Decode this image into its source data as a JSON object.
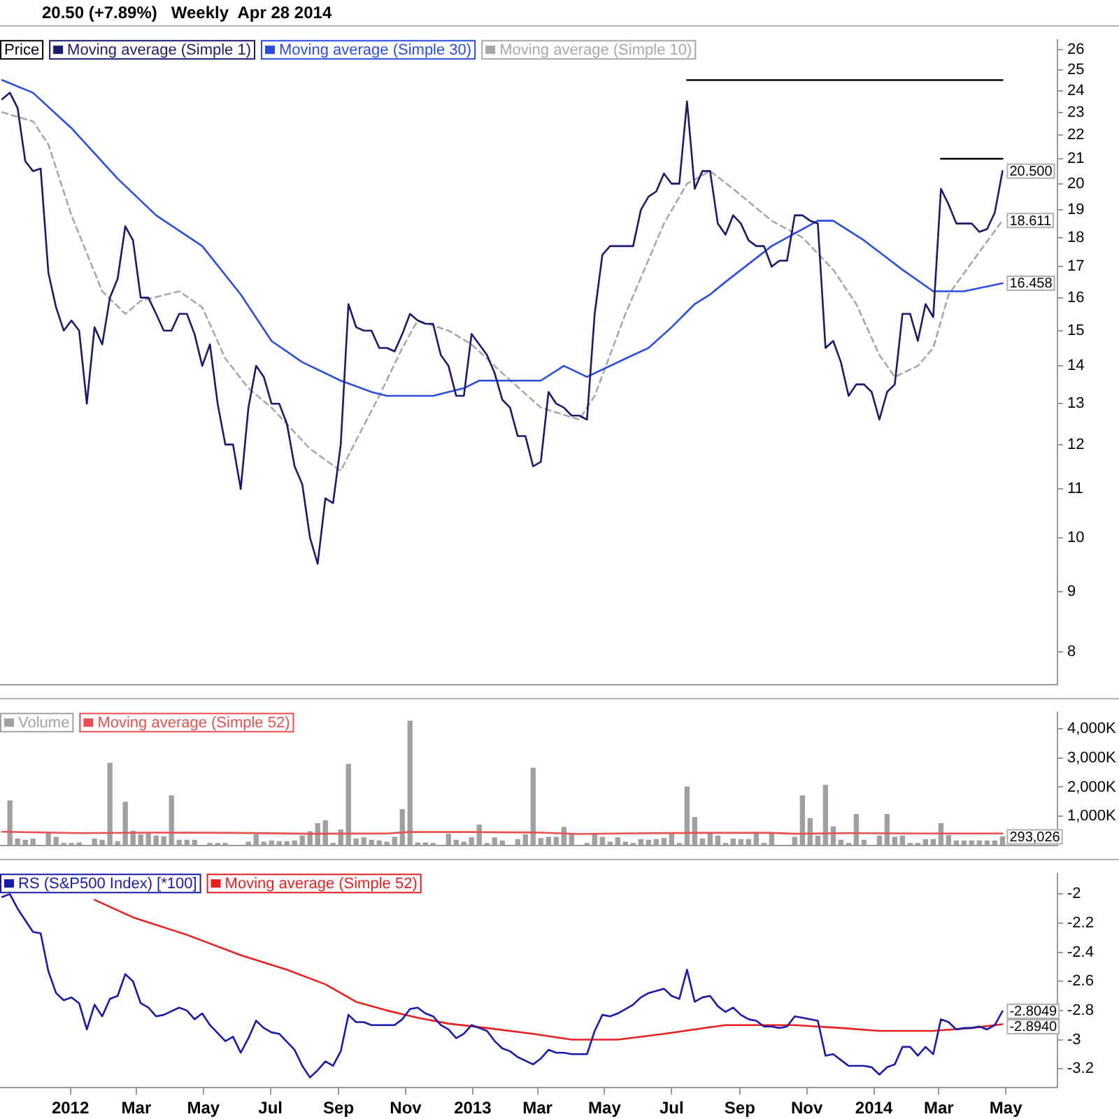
{
  "chart_data": [
    {
      "type": "line",
      "title": "20.50 (+7.89%)   Weekly  Apr 28 2014",
      "legend_title": "Price",
      "legend": "top left",
      "marker": "none",
      "log": true,
      "tick_labels": "y",
      "x": [
        "2011-10-31",
        "2011-11-07",
        "2011-11-14",
        "2011-11-21",
        "2011-11-28",
        "2011-12-05",
        "2011-12-12",
        "2011-12-19",
        "2011-12-26",
        "2012-01-02",
        "2012-01-09",
        "2012-01-16",
        "2012-01-23",
        "2012-01-30",
        "2012-02-06",
        "2012-02-13",
        "2012-02-20",
        "2012-02-27",
        "2012-03-05",
        "2012-03-12",
        "2012-03-19",
        "2012-03-26",
        "2012-04-02",
        "2012-04-09",
        "2012-04-16",
        "2012-04-23",
        "2012-04-30",
        "2012-05-07",
        "2012-05-14",
        "2012-05-21",
        "2012-05-28",
        "2012-06-04",
        "2012-06-11",
        "2012-06-18",
        "2012-06-25",
        "2012-07-02",
        "2012-07-09",
        "2012-07-16",
        "2012-07-23",
        "2012-07-30",
        "2012-08-06",
        "2012-08-13",
        "2012-08-20",
        "2012-08-27",
        "2012-09-03",
        "2012-09-10",
        "2012-09-17",
        "2012-09-24",
        "2012-10-01",
        "2012-10-08",
        "2012-10-15",
        "2012-10-22",
        "2012-10-29",
        "2012-11-05",
        "2012-11-12",
        "2012-11-19",
        "2012-11-26",
        "2012-12-03",
        "2012-12-10",
        "2012-12-17",
        "2012-12-24",
        "2012-12-31",
        "2013-01-07",
        "2013-01-14",
        "2013-01-21",
        "2013-01-28",
        "2013-02-04",
        "2013-02-11",
        "2013-02-18",
        "2013-02-25",
        "2013-03-04",
        "2013-03-11",
        "2013-03-18",
        "2013-03-25",
        "2013-04-01",
        "2013-04-08",
        "2013-04-15",
        "2013-04-22",
        "2013-04-29",
        "2013-05-06",
        "2013-05-13",
        "2013-05-20",
        "2013-05-27",
        "2013-06-03",
        "2013-06-10",
        "2013-06-17",
        "2013-06-24",
        "2013-07-01",
        "2013-07-08",
        "2013-07-15",
        "2013-07-22",
        "2013-07-29",
        "2013-08-05",
        "2013-08-12",
        "2013-08-19",
        "2013-08-26",
        "2013-09-02",
        "2013-09-09",
        "2013-09-16",
        "2013-09-23",
        "2013-09-30",
        "2013-10-07",
        "2013-10-14",
        "2013-10-21",
        "2013-10-28",
        "2013-11-04",
        "2013-11-11",
        "2013-11-18",
        "2013-11-25",
        "2013-12-02",
        "2013-12-09",
        "2013-12-16",
        "2013-12-23",
        "2013-12-30",
        "2014-01-06",
        "2014-01-13",
        "2014-01-20",
        "2014-01-27",
        "2014-02-03",
        "2014-02-10",
        "2014-02-17",
        "2014-02-24",
        "2014-03-03",
        "2014-03-10",
        "2014-03-17",
        "2014-03-24",
        "2014-03-31",
        "2014-04-07",
        "2014-04-14",
        "2014-04-21",
        "2014-04-28"
      ],
      "xlim": [
        "2011-10-29",
        "2014-06-17"
      ],
      "ylim": [
        7.5,
        26.5
      ],
      "yticks": [
        8,
        9,
        10,
        11,
        12,
        13,
        14,
        15,
        16,
        17,
        18,
        19,
        20,
        21,
        22,
        23,
        24,
        25,
        26
      ],
      "series": [
        {
          "color": "#000000",
          "x": [
            "2013-07-15",
            "2014-04-28"
          ],
          "values": [
            24.5,
            24.5
          ]
        },
        {
          "color": "#000000",
          "x": [
            "2014-03-03",
            "2014-04-28"
          ],
          "values": [
            21,
            21
          ]
        },
        {
          "name": "Moving average (Simple 1)",
          "color": "#1a1a6e",
          "values": [
            23.6,
            23.9,
            23.2,
            20.9,
            20.5,
            20.6,
            16.8,
            15.7,
            15.0,
            15.3,
            15.0,
            13.0,
            15.1,
            14.6,
            16.0,
            16.6,
            18.4,
            17.9,
            16.0,
            16.0,
            15.5,
            15.0,
            15.0,
            15.5,
            15.5,
            14.9,
            14.0,
            14.6,
            13.0,
            12.0,
            12.0,
            11.0,
            12.9,
            14.0,
            13.7,
            13.0,
            13.0,
            12.5,
            11.5,
            11.1,
            10.0,
            9.5,
            10.8,
            10.7,
            12.0,
            15.8,
            15.1,
            15.0,
            15.0,
            14.5,
            14.5,
            14.4,
            14.9,
            15.5,
            15.3,
            15.2,
            15.2,
            14.3,
            14.0,
            13.2,
            13.2,
            14.9,
            14.6,
            14.3,
            13.8,
            13.1,
            12.9,
            12.2,
            12.2,
            11.5,
            11.6,
            13.3,
            13.0,
            12.9,
            12.7,
            12.7,
            12.6,
            15.5,
            17.4,
            17.7,
            17.7,
            17.7,
            17.7,
            19.0,
            19.5,
            19.7,
            20.4,
            20.0,
            20.0,
            23.5,
            19.8,
            20.5,
            20.5,
            18.5,
            18.1,
            18.8,
            18.5,
            17.9,
            17.7,
            17.7,
            17.0,
            17.2,
            17.2,
            18.8,
            18.8,
            18.6,
            18.5,
            14.5,
            14.7,
            14.1,
            13.2,
            13.5,
            13.5,
            13.3,
            12.6,
            13.3,
            13.5,
            15.5,
            15.5,
            14.7,
            15.8,
            15.4,
            19.8,
            19.2,
            18.5,
            18.5,
            18.5,
            18.2,
            18.3,
            18.9,
            20.5
          ]
        },
        {
          "name": "Moving average (Simple 30)",
          "color": "#2a4de0",
          "x": [
            "2011-10-31",
            "2011-11-28",
            "2012-01-02",
            "2012-02-13",
            "2012-03-19",
            "2012-04-30",
            "2012-06-04",
            "2012-07-02",
            "2012-07-30",
            "2012-09-03",
            "2012-10-01",
            "2012-10-15",
            "2012-11-26",
            "2012-12-24",
            "2013-01-07",
            "2013-03-04",
            "2013-03-25",
            "2013-04-15",
            "2013-05-20",
            "2013-06-10",
            "2013-07-01",
            "2013-07-22",
            "2013-08-05",
            "2013-08-19",
            "2013-09-30",
            "2013-11-11",
            "2013-11-25",
            "2013-12-23",
            "2014-01-27",
            "2014-02-24",
            "2014-03-24",
            "2014-04-28"
          ],
          "values": [
            24.5,
            23.9,
            22.3,
            20.2,
            18.8,
            17.7,
            16.1,
            14.7,
            14.1,
            13.6,
            13.3,
            13.2,
            13.2,
            13.4,
            13.6,
            13.6,
            14.0,
            13.7,
            14.2,
            14.5,
            15.1,
            15.8,
            16.1,
            16.5,
            17.7,
            18.6,
            18.6,
            17.9,
            16.9,
            16.2,
            16.2,
            16.458
          ]
        },
        {
          "name": "Moving average (Simple 10)",
          "color": "#a8a8a8",
          "line_style": "dashed",
          "x": [
            "2011-10-31",
            "2011-11-28",
            "2011-12-12",
            "2012-01-02",
            "2012-01-30",
            "2012-02-20",
            "2012-03-05",
            "2012-04-09",
            "2012-04-30",
            "2012-05-21",
            "2012-06-11",
            "2012-07-02",
            "2012-08-06",
            "2012-09-03",
            "2012-09-17",
            "2012-10-08",
            "2012-10-29",
            "2012-11-12",
            "2012-12-10",
            "2012-12-31",
            "2013-01-28",
            "2013-03-04",
            "2013-04-08",
            "2013-04-22",
            "2013-05-20",
            "2013-06-24",
            "2013-07-15",
            "2013-08-05",
            "2013-08-26",
            "2013-09-30",
            "2013-10-28",
            "2013-11-25",
            "2013-12-16",
            "2014-01-06",
            "2014-01-20",
            "2014-02-10",
            "2014-02-24",
            "2014-03-10",
            "2014-04-07",
            "2014-04-28"
          ],
          "values": [
            23.0,
            22.6,
            21.6,
            18.8,
            16.2,
            15.5,
            15.9,
            16.2,
            15.7,
            14.2,
            13.4,
            12.9,
            11.9,
            11.4,
            12.1,
            13.2,
            14.5,
            15.3,
            15.0,
            14.6,
            13.8,
            12.9,
            12.6,
            13.2,
            15.5,
            18.5,
            20.0,
            20.5,
            19.8,
            18.6,
            18.0,
            16.9,
            15.8,
            14.3,
            13.7,
            14.0,
            14.5,
            16.1,
            17.5,
            18.611
          ]
        }
      ],
      "annotations": [
        {
          "text": "20.500",
          "x": "2014-04-28",
          "y": 20.5
        },
        {
          "text": "18.611",
          "x": "2014-04-28",
          "y": 18.611
        },
        {
          "text": "16.458",
          "x": "2014-04-28",
          "y": 16.458
        }
      ]
    },
    {
      "type": "bar",
      "legend": "top left",
      "marker": "none",
      "tick_labels": "y",
      "x": [
        "2011-11-07",
        "2011-11-14",
        "2011-11-21",
        "2011-11-28",
        "2011-12-05",
        "2011-12-12",
        "2011-12-19",
        "2011-12-26",
        "2012-01-02",
        "2012-01-09",
        "2012-01-16",
        "2012-01-23",
        "2012-01-30",
        "2012-02-06",
        "2012-02-13",
        "2012-02-20",
        "2012-02-27",
        "2012-03-05",
        "2012-03-12",
        "2012-03-19",
        "2012-03-26",
        "2012-04-02",
        "2012-04-09",
        "2012-04-16",
        "2012-04-23",
        "2012-04-30",
        "2012-05-07",
        "2012-05-14",
        "2012-05-21",
        "2012-05-28",
        "2012-06-04",
        "2012-06-11",
        "2012-06-18",
        "2012-06-25",
        "2012-07-02",
        "2012-07-09",
        "2012-07-16",
        "2012-07-23",
        "2012-07-30",
        "2012-08-06",
        "2012-08-13",
        "2012-08-20",
        "2012-08-27",
        "2012-09-03",
        "2012-09-10",
        "2012-09-17",
        "2012-09-24",
        "2012-10-01",
        "2012-10-08",
        "2012-10-15",
        "2012-10-22",
        "2012-10-29",
        "2012-11-05",
        "2012-11-12",
        "2012-11-19",
        "2012-11-26",
        "2012-12-03",
        "2012-12-10",
        "2012-12-17",
        "2012-12-24",
        "2012-12-31",
        "2013-01-07",
        "2013-01-14",
        "2013-01-21",
        "2013-01-28",
        "2013-02-04",
        "2013-02-11",
        "2013-02-18",
        "2013-02-25",
        "2013-03-04",
        "2013-03-11",
        "2013-03-18",
        "2013-03-25",
        "2013-04-01",
        "2013-04-08",
        "2013-04-15",
        "2013-04-22",
        "2013-04-29",
        "2013-05-06",
        "2013-05-13",
        "2013-05-20",
        "2013-05-27",
        "2013-06-03",
        "2013-06-10",
        "2013-06-17",
        "2013-06-24",
        "2013-07-01",
        "2013-07-08",
        "2013-07-15",
        "2013-07-22",
        "2013-07-29",
        "2013-08-05",
        "2013-08-12",
        "2013-08-19",
        "2013-08-26",
        "2013-09-02",
        "2013-09-09",
        "2013-09-16",
        "2013-09-23",
        "2013-09-30",
        "2013-10-07",
        "2013-10-14",
        "2013-10-21",
        "2013-10-28",
        "2013-11-04",
        "2013-11-11",
        "2013-11-18",
        "2013-11-25",
        "2013-12-02",
        "2013-12-09",
        "2013-12-16",
        "2013-12-23",
        "2013-12-30",
        "2014-01-06",
        "2014-01-13",
        "2014-01-20",
        "2014-01-27",
        "2014-02-03",
        "2014-02-10",
        "2014-02-17",
        "2014-02-24",
        "2014-03-03",
        "2014-03-10",
        "2014-03-17",
        "2014-03-24",
        "2014-03-31",
        "2014-04-07",
        "2014-04-14",
        "2014-04-21",
        "2014-04-28"
      ],
      "xlim": [
        "2011-10-29",
        "2014-06-17"
      ],
      "ylim": [
        0,
        4550
      ],
      "yticks": [
        {
          "value": 1000,
          "label": "1,000K"
        },
        {
          "value": 2000,
          "label": "2,000K"
        },
        {
          "value": 3000,
          "label": "3,000K"
        },
        {
          "value": 4000,
          "label": "4,000K"
        }
      ],
      "series": [
        {
          "name": "Volume",
          "color": "#a0a0a0",
          "values": [
            1530,
            220,
            175,
            220,
            null,
            430,
            280,
            70,
            70,
            90,
            null,
            220,
            175,
            2820,
            130,
            1480,
            490,
            365,
            410,
            320,
            300,
            1700,
            175,
            175,
            175,
            null,
            70,
            70,
            70,
            null,
            null,
            110,
            365,
            110,
            155,
            130,
            130,
            155,
            320,
            470,
            750,
            850,
            70,
            530,
            2780,
            220,
            260,
            175,
            155,
            110,
            280,
            1230,
            4260,
            90,
            90,
            70,
            null,
            390,
            175,
            110,
            260,
            700,
            70,
            260,
            155,
            null,
            200,
            365,
            2650,
            240,
            280,
            280,
            620,
            390,
            null,
            70,
            365,
            280,
            110,
            260,
            110,
            70,
            200,
            175,
            200,
            240,
            390,
            70,
            2010,
            960,
            220,
            430,
            320,
            70,
            220,
            200,
            200,
            450,
            70,
            430,
            null,
            null,
            280,
            1700,
            920,
            320,
            2060,
            640,
            175,
            70,
            1060,
            175,
            null,
            320,
            1060,
            280,
            320,
            70,
            70,
            200,
            200,
            750,
            345,
            155,
            155,
            155,
            155,
            155,
            155,
            293.026
          ]
        },
        {
          "name": "Moving average (Simple 52)",
          "type": "line",
          "color": "#e85050",
          "x": [
            "2011-10-31",
            "2012-01-09",
            "2012-03-19",
            "2012-05-28",
            "2012-08-06",
            "2012-10-15",
            "2012-11-05",
            "2012-12-24",
            "2013-03-04",
            "2013-04-08",
            "2013-05-13",
            "2013-07-22",
            "2013-09-30",
            "2013-10-21",
            "2013-12-09",
            "2014-02-17",
            "2014-04-28"
          ],
          "values": [
            470,
            420,
            440,
            430,
            400,
            410,
            460,
            460,
            440,
            390,
            410,
            430,
            430,
            400,
            420,
            410,
            410
          ]
        }
      ],
      "annotations": [
        {
          "text": "293,026",
          "x": "2014-04-28",
          "y": 293.026
        }
      ]
    },
    {
      "type": "line",
      "legend": "top left",
      "marker": "none",
      "xlim": [
        "2011-10-29",
        "2014-06-17"
      ],
      "xticks": [
        {
          "value": "2012-01-01",
          "label": "2012"
        },
        {
          "value": "2012-03-01",
          "label": "Mar"
        },
        {
          "value": "2012-05-01",
          "label": "May"
        },
        {
          "value": "2012-07-01",
          "label": "Jul"
        },
        {
          "value": "2012-09-01",
          "label": "Sep"
        },
        {
          "value": "2012-11-01",
          "label": "Nov"
        },
        {
          "value": "2013-01-01",
          "label": "2013"
        },
        {
          "value": "2013-03-01",
          "label": "Mar"
        },
        {
          "value": "2013-05-01",
          "label": "May"
        },
        {
          "value": "2013-07-01",
          "label": "Jul"
        },
        {
          "value": "2013-09-01",
          "label": "Sep"
        },
        {
          "value": "2013-11-01",
          "label": "Nov"
        },
        {
          "value": "2014-01-01",
          "label": "2014"
        },
        {
          "value": "2014-03-01",
          "label": "Mar"
        },
        {
          "value": "2014-05-01",
          "label": "May"
        }
      ],
      "ylim": [
        -3.33,
        -1.86
      ],
      "yticks": [
        -3.2,
        -3,
        -2.8,
        -2.6,
        -2.4,
        -2.2,
        -2
      ],
      "series": [
        {
          "name": "RS (S&P500 Index) [*100]",
          "color": "#1a1aa8",
          "x": [
            "2011-10-31",
            "2011-11-07",
            "2011-11-14",
            "2011-11-28",
            "2011-12-05",
            "2011-12-12",
            "2011-12-19",
            "2011-12-26",
            "2012-01-02",
            "2012-01-09",
            "2012-01-16",
            "2012-01-23",
            "2012-01-30",
            "2012-02-06",
            "2012-02-13",
            "2012-02-20",
            "2012-02-27",
            "2012-03-05",
            "2012-03-12",
            "2012-03-19",
            "2012-03-26",
            "2012-04-09",
            "2012-04-16",
            "2012-04-23",
            "2012-04-30",
            "2012-05-07",
            "2012-05-21",
            "2012-05-28",
            "2012-06-04",
            "2012-06-11",
            "2012-06-18",
            "2012-06-25",
            "2012-07-02",
            "2012-07-09",
            "2012-07-23",
            "2012-07-30",
            "2012-08-06",
            "2012-08-13",
            "2012-08-20",
            "2012-08-27",
            "2012-09-03",
            "2012-09-10",
            "2012-09-17",
            "2012-09-24",
            "2012-10-01",
            "2012-10-08",
            "2012-10-22",
            "2012-10-29",
            "2012-11-05",
            "2012-11-12",
            "2012-11-19",
            "2012-11-26",
            "2012-12-03",
            "2012-12-10",
            "2012-12-17",
            "2012-12-24",
            "2012-12-31",
            "2013-01-07",
            "2013-01-14",
            "2013-01-21",
            "2013-01-28",
            "2013-02-04",
            "2013-02-11",
            "2013-02-25",
            "2013-03-04",
            "2013-03-11",
            "2013-03-18",
            "2013-03-25",
            "2013-04-01",
            "2013-04-15",
            "2013-04-22",
            "2013-04-29",
            "2013-05-06",
            "2013-05-13",
            "2013-05-27",
            "2013-06-03",
            "2013-06-10",
            "2013-06-24",
            "2013-07-01",
            "2013-07-08",
            "2013-07-15",
            "2013-07-22",
            "2013-07-29",
            "2013-08-05",
            "2013-08-12",
            "2013-08-19",
            "2013-08-26",
            "2013-09-02",
            "2013-09-09",
            "2013-09-16",
            "2013-09-23",
            "2013-09-30",
            "2013-10-07",
            "2013-10-14",
            "2013-10-21",
            "2013-10-28",
            "2013-11-11",
            "2013-11-18",
            "2013-11-25",
            "2013-12-02",
            "2013-12-09",
            "2013-12-23",
            "2013-12-30",
            "2014-01-06",
            "2014-01-13",
            "2014-01-20",
            "2014-01-27",
            "2014-02-03",
            "2014-02-10",
            "2014-02-17",
            "2014-02-24",
            "2014-03-03",
            "2014-03-10",
            "2014-03-17",
            "2014-03-24",
            "2014-03-31",
            "2014-04-07",
            "2014-04-14",
            "2014-04-21",
            "2014-04-28"
          ],
          "values": [
            -2.02,
            -2.0,
            -2.1,
            -2.26,
            -2.27,
            -2.53,
            -2.68,
            -2.73,
            -2.71,
            -2.75,
            -2.93,
            -2.76,
            -2.84,
            -2.72,
            -2.7,
            -2.55,
            -2.6,
            -2.75,
            -2.78,
            -2.84,
            -2.83,
            -2.78,
            -2.8,
            -2.86,
            -2.82,
            -2.9,
            -3.01,
            -2.98,
            -3.09,
            -2.99,
            -2.87,
            -2.92,
            -2.95,
            -2.96,
            -3.07,
            -3.18,
            -3.26,
            -3.21,
            -3.15,
            -3.18,
            -3.08,
            -2.83,
            -2.88,
            -2.88,
            -2.9,
            -2.9,
            -2.9,
            -2.86,
            -2.79,
            -2.78,
            -2.82,
            -2.84,
            -2.9,
            -2.93,
            -2.99,
            -2.96,
            -2.9,
            -2.92,
            -2.94,
            -3.01,
            -3.06,
            -3.08,
            -3.12,
            -3.17,
            -3.13,
            -3.07,
            -3.09,
            -3.09,
            -3.1,
            -3.1,
            -2.94,
            -2.83,
            -2.84,
            -2.82,
            -2.76,
            -2.71,
            -2.68,
            -2.65,
            -2.7,
            -2.72,
            -2.52,
            -2.74,
            -2.71,
            -2.7,
            -2.77,
            -2.81,
            -2.78,
            -2.83,
            -2.86,
            -2.87,
            -2.91,
            -2.91,
            -2.92,
            -2.91,
            -2.84,
            -2.85,
            -2.87,
            -3.11,
            -3.1,
            -3.14,
            -3.18,
            -3.18,
            -3.19,
            -3.24,
            -3.19,
            -3.17,
            -3.05,
            -3.05,
            -3.11,
            -3.05,
            -3.1,
            -2.86,
            -2.88,
            -2.93,
            -2.92,
            -2.92,
            -2.91,
            -2.93,
            -2.9,
            -2.8049
          ]
        },
        {
          "name": "Moving average (Simple 52)",
          "color": "#e82020",
          "x": [
            "2012-01-23",
            "2012-02-27",
            "2012-04-16",
            "2012-06-04",
            "2012-07-16",
            "2012-08-20",
            "2012-09-17",
            "2012-10-15",
            "2012-11-12",
            "2012-12-10",
            "2013-01-14",
            "2013-02-25",
            "2013-04-01",
            "2013-05-13",
            "2013-06-24",
            "2013-08-19",
            "2013-10-21",
            "2013-12-02",
            "2014-01-06",
            "2014-02-24",
            "2014-03-31",
            "2014-04-28"
          ],
          "values": [
            -2.04,
            -2.16,
            -2.28,
            -2.42,
            -2.52,
            -2.62,
            -2.74,
            -2.8,
            -2.85,
            -2.89,
            -2.92,
            -2.96,
            -3.0,
            -3.0,
            -2.96,
            -2.9,
            -2.9,
            -2.92,
            -2.94,
            -2.94,
            -2.92,
            -2.894
          ]
        }
      ],
      "annotations": [
        {
          "text": "-2.8049",
          "x": "2014-04-28",
          "y": -2.8049
        },
        {
          "text": "-2.8940",
          "x": "2014-04-28",
          "y": -2.894
        }
      ]
    }
  ]
}
